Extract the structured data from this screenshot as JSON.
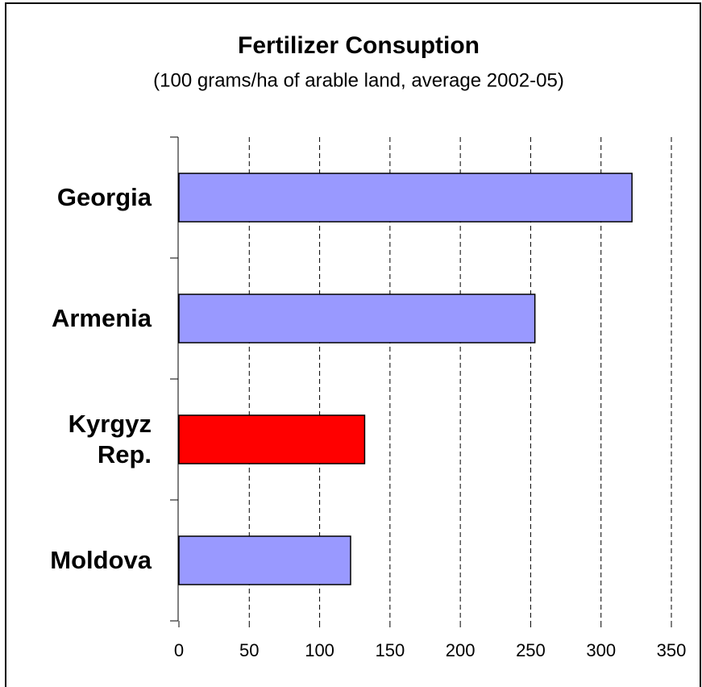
{
  "chart_data": {
    "type": "barh",
    "title": "Fertilizer Consuption",
    "subtitle": "(100 grams/ha of arable land, average 2002-05)",
    "categories": [
      "Georgia",
      "Armenia",
      "Kyrgyz Rep.",
      "Moldova"
    ],
    "values": [
      322,
      253,
      132,
      122
    ],
    "colors": [
      "#9999ff",
      "#9999ff",
      "#ff0000",
      "#9999ff"
    ],
    "xlim": [
      0,
      350
    ],
    "xticks": [
      0,
      50,
      100,
      150,
      200,
      250,
      300,
      350
    ],
    "grid": true
  }
}
